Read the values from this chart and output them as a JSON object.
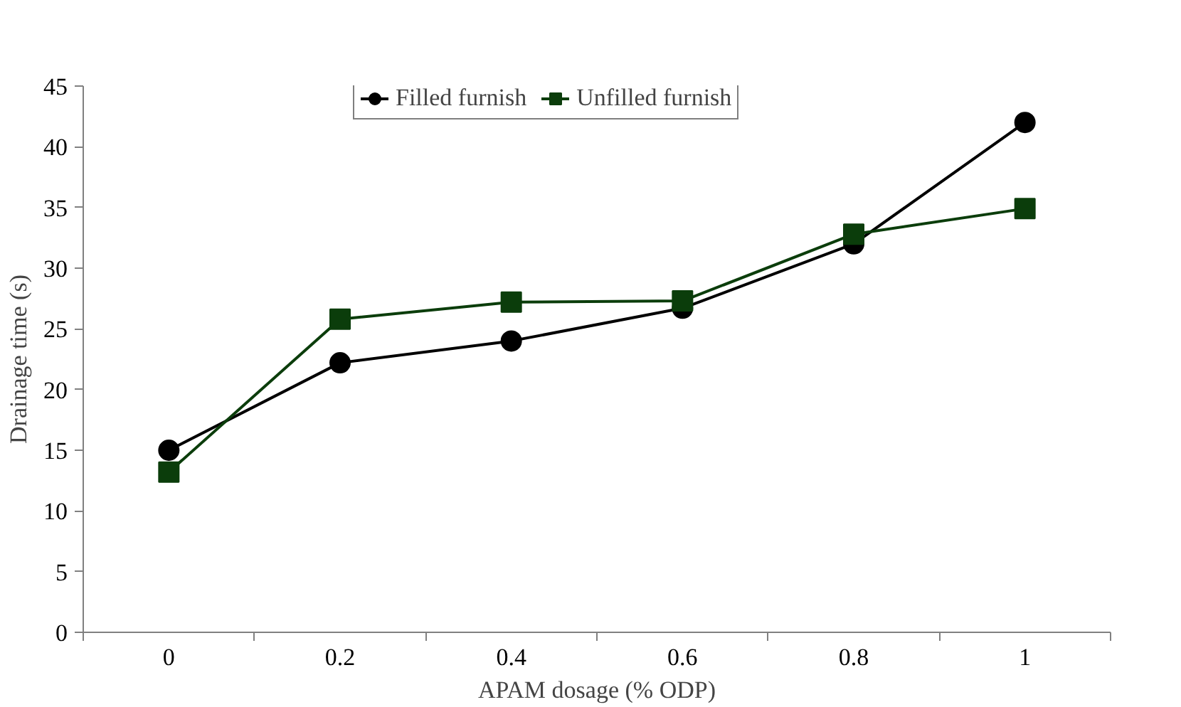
{
  "chart_data": {
    "type": "line",
    "xlabel": "APAM dosage (% ODP)",
    "ylabel": "Drainage time (s)",
    "categories": [
      "0",
      "0.2",
      "0.4",
      "0.6",
      "0.8",
      "1"
    ],
    "series": [
      {
        "name": "Filled furnish",
        "color": "#000000",
        "marker": "circle",
        "values": [
          15,
          22.2,
          24,
          26.7,
          32,
          42
        ]
      },
      {
        "name": "Unfilled furnish",
        "color": "#0b3d0b",
        "marker": "square",
        "values": [
          13.2,
          25.8,
          27.2,
          27.3,
          32.8,
          34.9
        ]
      }
    ],
    "ylim": [
      0,
      45
    ],
    "yticks": [
      0,
      5,
      10,
      15,
      20,
      25,
      30,
      35,
      40,
      45
    ],
    "grid": false,
    "legend": "top",
    "line_style": "solid"
  }
}
